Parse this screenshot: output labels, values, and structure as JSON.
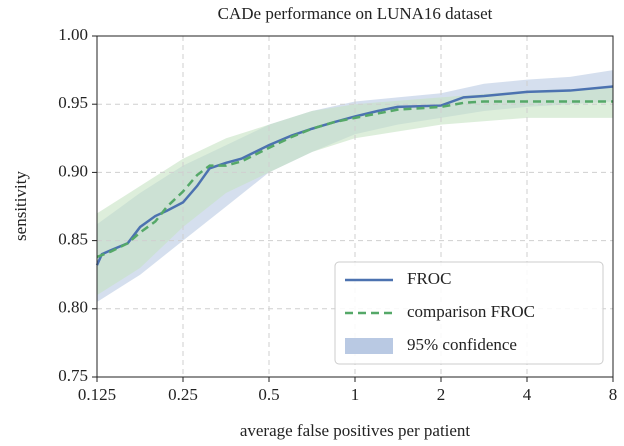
{
  "chart_data": {
    "type": "line",
    "title": "CADe performance on LUNA16 dataset",
    "xlabel": "average false positives per patient",
    "ylabel": "sensitivity",
    "xscale": "log2",
    "xlim": [
      0.125,
      8
    ],
    "xticks": [
      0.125,
      0.25,
      0.5,
      1,
      2,
      4,
      8
    ],
    "ylim": [
      0.75,
      1.0
    ],
    "yticks": [
      {
        "value": 0.75,
        "label": "0.75"
      },
      {
        "value": 0.8,
        "label": "0.80"
      },
      {
        "value": 0.85,
        "label": "0.85"
      },
      {
        "value": 0.9,
        "label": "0.90"
      },
      {
        "value": 0.95,
        "label": "0.95"
      },
      {
        "value": 1.0,
        "label": "1.00"
      }
    ],
    "grid": true,
    "legend": "lower right",
    "band_label": "95% confidence",
    "band_color": "#b9c9e3",
    "series": [
      {
        "name": "FROC",
        "color": "#4c72b0",
        "dash": false,
        "x": [
          0.125,
          0.13,
          0.14,
          0.16,
          0.177,
          0.2,
          0.22,
          0.25,
          0.28,
          0.31,
          0.354,
          0.4,
          0.5,
          0.6,
          0.707,
          0.85,
          1,
          1.2,
          1.41,
          2,
          2.4,
          2.83,
          4,
          5.66,
          8
        ],
        "values": [
          0.832,
          0.84,
          0.843,
          0.848,
          0.86,
          0.868,
          0.872,
          0.878,
          0.89,
          0.903,
          0.907,
          0.91,
          0.92,
          0.927,
          0.932,
          0.937,
          0.941,
          0.945,
          0.948,
          0.949,
          0.955,
          0.956,
          0.959,
          0.96,
          0.963
        ],
        "band": {
          "color": "#b9c9e3",
          "x": [
            0.125,
            0.177,
            0.25,
            0.354,
            0.5,
            0.707,
            1,
            1.41,
            2,
            2.83,
            4,
            5.66,
            8
          ],
          "lower": [
            0.805,
            0.825,
            0.85,
            0.875,
            0.9,
            0.915,
            0.928,
            0.935,
            0.94,
            0.945,
            0.948,
            0.95,
            0.952
          ],
          "upper": [
            0.862,
            0.885,
            0.905,
            0.92,
            0.935,
            0.945,
            0.952,
            0.955,
            0.958,
            0.965,
            0.968,
            0.97,
            0.975
          ]
        }
      },
      {
        "name": "comparison FROC",
        "color": "#55a868",
        "dash": true,
        "x": [
          0.125,
          0.14,
          0.16,
          0.177,
          0.2,
          0.22,
          0.25,
          0.28,
          0.31,
          0.354,
          0.4,
          0.5,
          0.6,
          0.707,
          0.85,
          1,
          1.41,
          2,
          2.4,
          2.83,
          4,
          8
        ],
        "values": [
          0.838,
          0.842,
          0.848,
          0.856,
          0.864,
          0.875,
          0.886,
          0.898,
          0.905,
          0.905,
          0.908,
          0.918,
          0.926,
          0.932,
          0.937,
          0.94,
          0.946,
          0.948,
          0.951,
          0.952,
          0.952,
          0.952
        ],
        "band": {
          "color": "#c6e2c3",
          "x": [
            0.125,
            0.177,
            0.25,
            0.354,
            0.5,
            0.707,
            1,
            2,
            4,
            8
          ],
          "lower": [
            0.81,
            0.83,
            0.86,
            0.885,
            0.9,
            0.915,
            0.925,
            0.935,
            0.94,
            0.94
          ],
          "upper": [
            0.87,
            0.89,
            0.91,
            0.925,
            0.935,
            0.945,
            0.95,
            0.955,
            0.96,
            0.962
          ]
        }
      }
    ]
  }
}
